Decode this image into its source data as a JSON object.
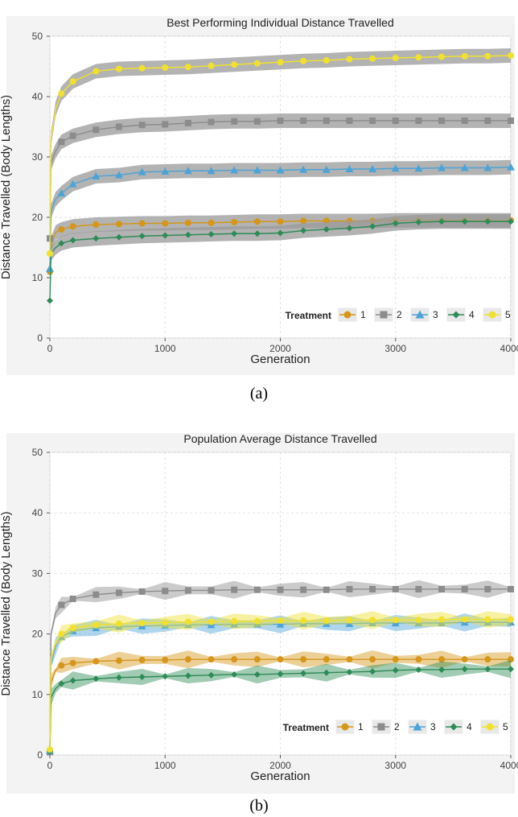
{
  "captions": {
    "a": "(a)",
    "b": "(b)"
  },
  "legend_title": "Treatment",
  "treatment_colors": {
    "1": "#d4961b",
    "2": "#8c8c8c",
    "3": "#4ea3d6",
    "4": "#2e8b57",
    "5": "#f0e030"
  },
  "treatment_markers": {
    "1": "circle",
    "2": "square",
    "3": "triangle",
    "4": "diamond",
    "5": "circle"
  },
  "chart_data": [
    {
      "type": "line",
      "title": "Best Performing Individual Distance Travelled",
      "xlabel": "Generation",
      "ylabel": "Distance Travelled (Body Lengths)",
      "xlim": [
        0,
        4000
      ],
      "ylim": [
        0,
        50
      ],
      "xticks": [
        0,
        1000,
        2000,
        3000,
        4000
      ],
      "yticks": [
        0,
        10,
        20,
        30,
        40,
        50
      ],
      "grid": true,
      "legend": "bottom-right",
      "x": [
        0,
        10,
        50,
        100,
        200,
        400,
        600,
        800,
        1000,
        1200,
        1400,
        1600,
        1800,
        2000,
        2200,
        2400,
        2600,
        2800,
        3000,
        3200,
        3400,
        3600,
        3800,
        4000
      ],
      "series": [
        {
          "name": "1",
          "values": [
            11.0,
            15.5,
            17.5,
            18.0,
            18.5,
            18.8,
            18.9,
            19.0,
            19.0,
            19.1,
            19.1,
            19.2,
            19.3,
            19.3,
            19.4,
            19.4,
            19.4,
            19.4,
            19.5,
            19.5,
            19.5,
            19.5,
            19.5,
            19.5
          ]
        },
        {
          "name": "2",
          "values": [
            16.5,
            29.0,
            31.0,
            32.5,
            33.5,
            34.5,
            35.0,
            35.3,
            35.4,
            35.6,
            35.8,
            35.9,
            35.9,
            36.0,
            36.0,
            36.0,
            36.0,
            36.0,
            36.0,
            36.0,
            36.0,
            36.0,
            36.0,
            36.0
          ]
        },
        {
          "name": "3",
          "values": [
            11.5,
            21.0,
            23.0,
            24.0,
            25.5,
            26.8,
            27.0,
            27.5,
            27.6,
            27.7,
            27.7,
            27.8,
            27.8,
            27.8,
            27.9,
            27.9,
            28.0,
            28.0,
            28.1,
            28.1,
            28.2,
            28.2,
            28.2,
            28.3
          ]
        },
        {
          "name": "4",
          "values": [
            6.2,
            14.0,
            15.0,
            15.7,
            16.2,
            16.5,
            16.7,
            16.9,
            17.0,
            17.1,
            17.2,
            17.3,
            17.3,
            17.4,
            17.8,
            18.0,
            18.2,
            18.5,
            19.0,
            19.2,
            19.3,
            19.3,
            19.3,
            19.3
          ]
        },
        {
          "name": "5",
          "values": [
            14.0,
            33.0,
            38.0,
            40.5,
            42.5,
            44.2,
            44.6,
            44.7,
            44.8,
            44.9,
            45.1,
            45.3,
            45.5,
            45.7,
            45.9,
            46.0,
            46.2,
            46.3,
            46.4,
            46.5,
            46.6,
            46.7,
            46.7,
            46.8
          ]
        }
      ]
    },
    {
      "type": "line",
      "title": "Population Average Distance Travelled",
      "xlabel": "Generation",
      "ylabel": "Distance Travelled (Body Lengths)",
      "xlim": [
        0,
        4000
      ],
      "ylim": [
        0,
        50
      ],
      "xticks": [
        0,
        1000,
        2000,
        3000,
        4000
      ],
      "yticks": [
        0,
        10,
        20,
        30,
        40,
        50
      ],
      "grid": true,
      "legend": "bottom-right",
      "x": [
        0,
        10,
        50,
        100,
        200,
        400,
        600,
        800,
        1000,
        1200,
        1400,
        1600,
        1800,
        2000,
        2200,
        2400,
        2600,
        2800,
        3000,
        3200,
        3400,
        3600,
        3800,
        4000
      ],
      "series": [
        {
          "name": "1",
          "values": [
            0.8,
            12.0,
            14.0,
            14.8,
            15.2,
            15.5,
            15.6,
            15.7,
            15.7,
            15.8,
            15.8,
            15.8,
            15.8,
            15.8,
            15.8,
            15.8,
            15.8,
            15.8,
            15.8,
            15.8,
            15.8,
            15.8,
            15.8,
            15.8
          ]
        },
        {
          "name": "2",
          "values": [
            0.5,
            20.0,
            23.5,
            24.8,
            25.8,
            26.5,
            26.8,
            27.0,
            27.1,
            27.2,
            27.2,
            27.3,
            27.3,
            27.3,
            27.3,
            27.3,
            27.4,
            27.4,
            27.4,
            27.4,
            27.4,
            27.4,
            27.4,
            27.4
          ]
        },
        {
          "name": "3",
          "values": [
            0.7,
            15.0,
            18.0,
            19.5,
            20.5,
            21.0,
            21.2,
            21.3,
            21.4,
            21.5,
            21.5,
            21.6,
            21.6,
            21.6,
            21.7,
            21.7,
            21.7,
            21.8,
            21.8,
            21.8,
            21.8,
            21.9,
            21.9,
            21.9
          ]
        },
        {
          "name": "4",
          "values": [
            0.6,
            9.5,
            11.0,
            11.8,
            12.3,
            12.6,
            12.8,
            12.9,
            13.0,
            13.1,
            13.2,
            13.3,
            13.3,
            13.4,
            13.5,
            13.6,
            13.7,
            13.8,
            14.0,
            14.1,
            14.1,
            14.2,
            14.2,
            14.2
          ]
        },
        {
          "name": "5",
          "values": [
            0.9,
            16.0,
            18.5,
            20.0,
            21.0,
            21.5,
            21.7,
            21.8,
            21.9,
            22.0,
            22.0,
            22.1,
            22.1,
            22.2,
            22.2,
            22.2,
            22.3,
            22.3,
            22.3,
            22.3,
            22.4,
            22.4,
            22.4,
            22.4
          ]
        }
      ]
    }
  ]
}
